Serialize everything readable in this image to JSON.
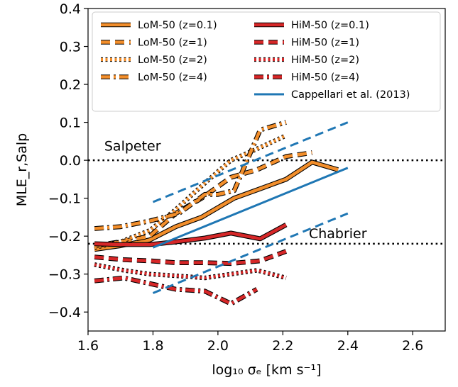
{
  "chart_data": {
    "type": "line",
    "xlabel": "log₁₀ σₑ [km s⁻¹]",
    "ylabel": "MLE_r,Salp",
    "xlim": [
      1.6,
      2.7
    ],
    "ylim": [
      -0.45,
      0.4
    ],
    "x_ticks": [
      1.6,
      1.8,
      2.0,
      2.2,
      2.4,
      2.6
    ],
    "y_ticks": [
      0.4,
      0.3,
      0.2,
      0.1,
      0.0,
      -0.1,
      -0.2,
      -0.3,
      -0.4
    ],
    "x_tick_labels": [
      "1.6",
      "1.8",
      "2.0",
      "2.2",
      "2.4",
      "2.6"
    ],
    "y_tick_labels": [
      "0.4",
      "0.3",
      "0.2",
      "0.1",
      "0.0",
      "−0.1",
      "−0.2",
      "−0.3",
      "−0.4"
    ],
    "grid": false,
    "legend_position": "top",
    "colors": {
      "lom": "#f28e2b",
      "him": "#d62728",
      "cappellari": "#1f77b4"
    },
    "annotations": [
      {
        "text": "Salpeter",
        "x": 1.65,
        "y": 0.025
      },
      {
        "text": "Chabrier",
        "x": 2.28,
        "y": -0.205
      }
    ],
    "reference_lines": [
      {
        "name": "Salpeter",
        "y": 0.0,
        "style": "dotted"
      },
      {
        "name": "Chabrier",
        "y": -0.22,
        "style": "dotted"
      }
    ],
    "series": [
      {
        "name": "LoM-50 (z=0.1)",
        "group": "lom",
        "dash": "solid",
        "x": [
          1.62,
          1.7,
          1.79,
          1.87,
          1.95,
          2.05,
          2.13,
          2.21,
          2.29,
          2.37
        ],
        "y": [
          -0.235,
          -0.225,
          -0.21,
          -0.175,
          -0.15,
          -0.1,
          -0.075,
          -0.05,
          -0.005,
          -0.025
        ]
      },
      {
        "name": "LoM-50 (z=1)",
        "group": "lom",
        "dash": "dashed",
        "x": [
          1.62,
          1.7,
          1.79,
          1.87,
          1.95,
          2.04,
          2.12,
          2.21,
          2.29
        ],
        "y": [
          -0.225,
          -0.215,
          -0.2,
          -0.14,
          -0.1,
          -0.045,
          -0.025,
          0.01,
          0.02
        ]
      },
      {
        "name": "LoM-50 (z=2)",
        "group": "lom",
        "dash": "dotted",
        "x": [
          1.62,
          1.7,
          1.79,
          1.87,
          1.96,
          2.04,
          2.12,
          2.21
        ],
        "y": [
          -0.23,
          -0.215,
          -0.185,
          -0.13,
          -0.06,
          0.0,
          0.03,
          0.065
        ]
      },
      {
        "name": "LoM-50 (z=4)",
        "group": "lom",
        "dash": "dashdot",
        "x": [
          1.62,
          1.7,
          1.79,
          1.88,
          1.96,
          2.0,
          2.05,
          2.09,
          2.13,
          2.21
        ],
        "y": [
          -0.18,
          -0.175,
          -0.16,
          -0.14,
          -0.09,
          -0.09,
          -0.08,
          0.0,
          0.08,
          0.1
        ]
      },
      {
        "name": "HiM-50 (z=0.1)",
        "group": "him",
        "dash": "solid",
        "x": [
          1.62,
          1.7,
          1.79,
          1.87,
          1.96,
          2.04,
          2.13,
          2.21
        ],
        "y": [
          -0.22,
          -0.222,
          -0.222,
          -0.215,
          -0.205,
          -0.192,
          -0.207,
          -0.17
        ]
      },
      {
        "name": "HiM-50 (z=1)",
        "group": "him",
        "dash": "dashed",
        "x": [
          1.62,
          1.71,
          1.79,
          1.87,
          1.96,
          2.04,
          2.13,
          2.21
        ],
        "y": [
          -0.255,
          -0.262,
          -0.265,
          -0.27,
          -0.27,
          -0.272,
          -0.265,
          -0.24
        ]
      },
      {
        "name": "HiM-50 (z=2)",
        "group": "him",
        "dash": "dotted",
        "x": [
          1.62,
          1.71,
          1.79,
          1.88,
          1.96,
          2.04,
          2.12,
          2.21
        ],
        "y": [
          -0.275,
          -0.29,
          -0.3,
          -0.305,
          -0.31,
          -0.3,
          -0.29,
          -0.31
        ]
      },
      {
        "name": "HiM-50 (z=4)",
        "group": "him",
        "dash": "dashdot",
        "x": [
          1.62,
          1.71,
          1.79,
          1.87,
          1.96,
          2.04,
          2.12
        ],
        "y": [
          -0.318,
          -0.31,
          -0.325,
          -0.34,
          -0.345,
          -0.378,
          -0.34
        ]
      },
      {
        "name": "Cappellari et al. (2013)",
        "group": "cappellari",
        "dash": "solid",
        "x": [
          1.8,
          2.4
        ],
        "y": [
          -0.23,
          -0.02
        ]
      },
      {
        "name": "",
        "group": "cappellari",
        "dash": "dashed",
        "legend": false,
        "x": [
          1.8,
          2.4
        ],
        "y": [
          -0.11,
          0.1
        ]
      },
      {
        "name": "",
        "group": "cappellari",
        "dash": "dashed",
        "legend": false,
        "x": [
          1.8,
          2.4
        ],
        "y": [
          -0.35,
          -0.14
        ]
      }
    ]
  }
}
